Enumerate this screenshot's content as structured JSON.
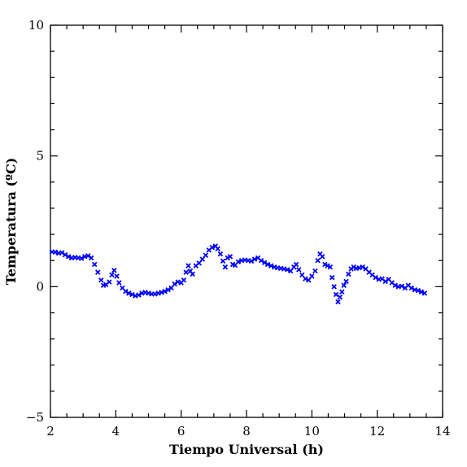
{
  "chart_data": {
    "type": "scatter",
    "xlabel": "Tiempo Universal (h)",
    "ylabel": "Temperatura (ºC)",
    "xlim": [
      2,
      14
    ],
    "ylim": [
      -5,
      10
    ],
    "x_ticks": [
      {
        "value": 2,
        "label": "2"
      },
      {
        "value": 4,
        "label": "4"
      },
      {
        "value": 6,
        "label": "6"
      },
      {
        "value": 8,
        "label": "8"
      },
      {
        "value": 10,
        "label": "10"
      },
      {
        "value": 12,
        "label": "12"
      },
      {
        "value": 14,
        "label": "14"
      }
    ],
    "y_ticks": [
      {
        "value": -5,
        "label": "−5"
      },
      {
        "value": 0,
        "label": "0"
      },
      {
        "value": 5,
        "label": "5"
      },
      {
        "value": 10,
        "label": "10"
      }
    ],
    "x_minor_step": 0.5,
    "y_minor_step": 1,
    "grid": false,
    "marker": "x",
    "colors": {
      "series": "#0000ff",
      "axes": "#000000",
      "background": "#ffffff"
    },
    "series": [
      {
        "points": [
          [
            2.05,
            1.33
          ],
          [
            2.15,
            1.32
          ],
          [
            2.25,
            1.28
          ],
          [
            2.35,
            1.3
          ],
          [
            2.45,
            1.22
          ],
          [
            2.55,
            1.15
          ],
          [
            2.65,
            1.1
          ],
          [
            2.75,
            1.12
          ],
          [
            2.85,
            1.1
          ],
          [
            2.95,
            1.08
          ],
          [
            3.05,
            1.15
          ],
          [
            3.15,
            1.18
          ],
          [
            3.25,
            1.1
          ],
          [
            3.35,
            0.85
          ],
          [
            3.45,
            0.55
          ],
          [
            3.55,
            0.25
          ],
          [
            3.62,
            0.05
          ],
          [
            3.7,
            0.08
          ],
          [
            3.8,
            0.18
          ],
          [
            3.88,
            0.45
          ],
          [
            3.95,
            0.62
          ],
          [
            4.03,
            0.4
          ],
          [
            4.1,
            0.15
          ],
          [
            4.2,
            -0.05
          ],
          [
            4.3,
            -0.18
          ],
          [
            4.4,
            -0.25
          ],
          [
            4.5,
            -0.3
          ],
          [
            4.6,
            -0.35
          ],
          [
            4.7,
            -0.32
          ],
          [
            4.8,
            -0.25
          ],
          [
            4.9,
            -0.22
          ],
          [
            5.0,
            -0.25
          ],
          [
            5.1,
            -0.28
          ],
          [
            5.2,
            -0.28
          ],
          [
            5.3,
            -0.25
          ],
          [
            5.4,
            -0.22
          ],
          [
            5.5,
            -0.18
          ],
          [
            5.6,
            -0.12
          ],
          [
            5.7,
            -0.05
          ],
          [
            5.8,
            0.1
          ],
          [
            5.9,
            0.18
          ],
          [
            6.0,
            0.15
          ],
          [
            6.08,
            0.25
          ],
          [
            6.15,
            0.55
          ],
          [
            6.22,
            0.8
          ],
          [
            6.28,
            0.6
          ],
          [
            6.35,
            0.48
          ],
          [
            6.45,
            0.8
          ],
          [
            6.55,
            0.9
          ],
          [
            6.65,
            1.05
          ],
          [
            6.75,
            1.2
          ],
          [
            6.85,
            1.4
          ],
          [
            6.95,
            1.5
          ],
          [
            7.05,
            1.55
          ],
          [
            7.12,
            1.45
          ],
          [
            7.2,
            1.25
          ],
          [
            7.28,
            0.98
          ],
          [
            7.35,
            0.75
          ],
          [
            7.42,
            1.1
          ],
          [
            7.5,
            1.15
          ],
          [
            7.58,
            0.85
          ],
          [
            7.65,
            0.82
          ],
          [
            7.75,
            0.95
          ],
          [
            7.85,
            1.0
          ],
          [
            7.95,
            1.02
          ],
          [
            8.05,
            1.0
          ],
          [
            8.15,
            0.98
          ],
          [
            8.25,
            1.05
          ],
          [
            8.35,
            1.1
          ],
          [
            8.45,
            1.0
          ],
          [
            8.55,
            0.92
          ],
          [
            8.65,
            0.85
          ],
          [
            8.75,
            0.8
          ],
          [
            8.85,
            0.75
          ],
          [
            8.95,
            0.72
          ],
          [
            9.05,
            0.7
          ],
          [
            9.15,
            0.68
          ],
          [
            9.25,
            0.65
          ],
          [
            9.35,
            0.6
          ],
          [
            9.45,
            0.75
          ],
          [
            9.52,
            0.85
          ],
          [
            9.6,
            0.65
          ],
          [
            9.7,
            0.45
          ],
          [
            9.8,
            0.3
          ],
          [
            9.9,
            0.25
          ],
          [
            10.0,
            0.4
          ],
          [
            10.1,
            0.6
          ],
          [
            10.18,
            1.0
          ],
          [
            10.25,
            1.25
          ],
          [
            10.32,
            1.15
          ],
          [
            10.4,
            0.85
          ],
          [
            10.48,
            0.8
          ],
          [
            10.56,
            0.75
          ],
          [
            10.62,
            0.35
          ],
          [
            10.68,
            0.0
          ],
          [
            10.74,
            -0.3
          ],
          [
            10.8,
            -0.58
          ],
          [
            10.86,
            -0.4
          ],
          [
            10.92,
            -0.2
          ],
          [
            10.98,
            0.05
          ],
          [
            11.05,
            0.2
          ],
          [
            11.12,
            0.48
          ],
          [
            11.2,
            0.68
          ],
          [
            11.28,
            0.75
          ],
          [
            11.36,
            0.7
          ],
          [
            11.45,
            0.72
          ],
          [
            11.55,
            0.75
          ],
          [
            11.65,
            0.68
          ],
          [
            11.75,
            0.55
          ],
          [
            11.85,
            0.45
          ],
          [
            11.95,
            0.35
          ],
          [
            12.05,
            0.28
          ],
          [
            12.15,
            0.3
          ],
          [
            12.25,
            0.2
          ],
          [
            12.35,
            0.28
          ],
          [
            12.45,
            0.15
          ],
          [
            12.55,
            0.05
          ],
          [
            12.65,
            0.0
          ],
          [
            12.75,
            0.02
          ],
          [
            12.85,
            -0.05
          ],
          [
            12.95,
            0.05
          ],
          [
            13.05,
            -0.05
          ],
          [
            13.15,
            -0.12
          ],
          [
            13.25,
            -0.15
          ],
          [
            13.35,
            -0.2
          ],
          [
            13.45,
            -0.25
          ]
        ]
      }
    ]
  }
}
